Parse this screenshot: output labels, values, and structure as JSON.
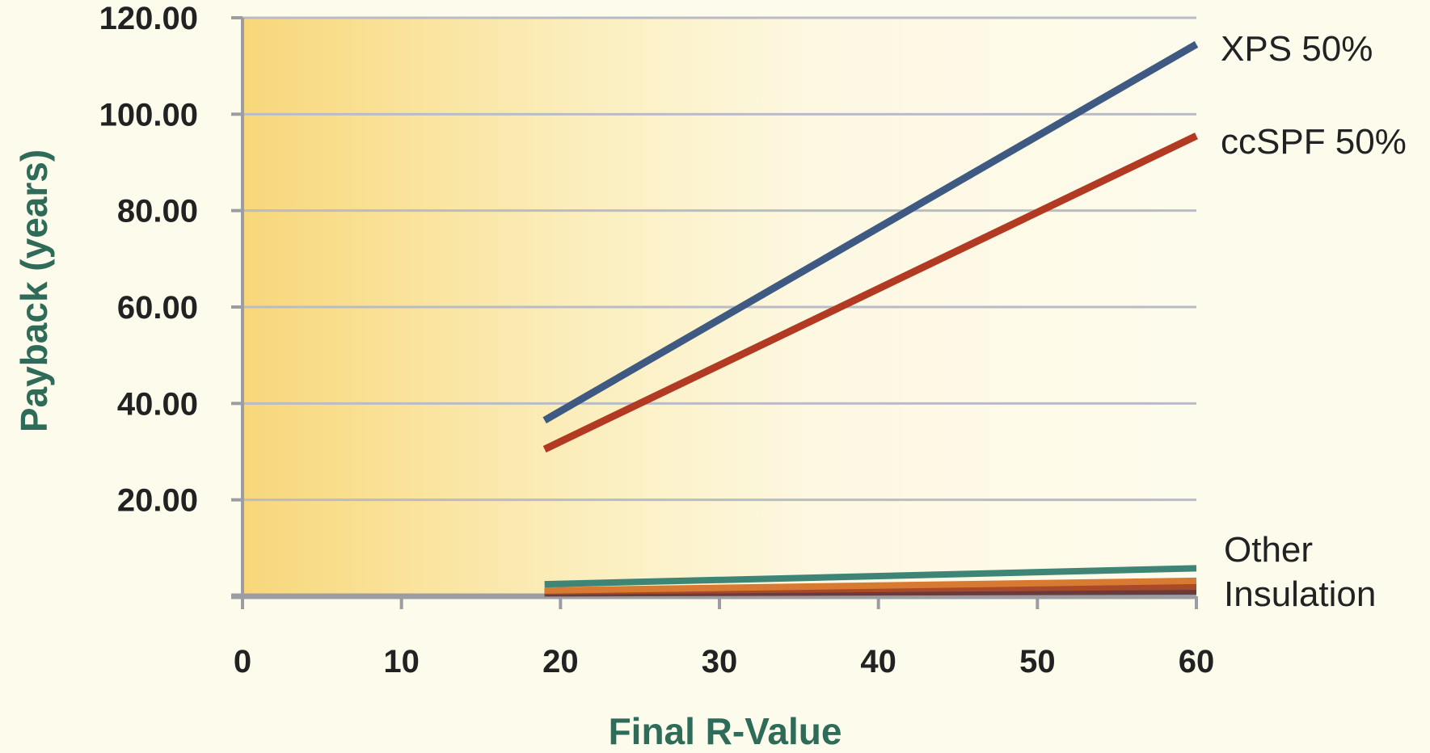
{
  "chart_data": {
    "type": "line",
    "title": "",
    "xlabel": "Final R-Value",
    "ylabel": "Payback (years)",
    "xlim": [
      0,
      60
    ],
    "ylim": [
      0,
      120
    ],
    "x_ticks": [
      "0",
      "10",
      "20",
      "30",
      "40",
      "50",
      "60"
    ],
    "y_ticks": [
      "20.00",
      "40.00",
      "60.00",
      "80.00",
      "100.00",
      "120.00"
    ],
    "grid": "horizontal",
    "background": "gradient-yellow-left",
    "series": [
      {
        "name": "XPS 50%",
        "color": "#3f5a82",
        "x": [
          19,
          60
        ],
        "y": [
          36.5,
          114.5
        ]
      },
      {
        "name": "ccSPF 50%",
        "color": "#b23a22",
        "x": [
          19,
          60
        ],
        "y": [
          30.5,
          95.5
        ]
      },
      {
        "name": "",
        "color": "#3e8575",
        "x": [
          19,
          60
        ],
        "y": [
          2.5,
          5.8
        ]
      },
      {
        "name": "",
        "color": "#d97a33",
        "x": [
          19,
          60
        ],
        "y": [
          1.2,
          3.2
        ]
      },
      {
        "name": "",
        "color": "#a84a2a",
        "x": [
          19,
          60
        ],
        "y": [
          1.0,
          2.0
        ]
      },
      {
        "name": "",
        "color": "#6b3a3a",
        "x": [
          19,
          60
        ],
        "y": [
          0.6,
          1.0
        ]
      }
    ],
    "annotations": [
      {
        "text": "Other",
        "group": "other"
      },
      {
        "text": "Insulation",
        "group": "other"
      }
    ],
    "label_colors": {
      "axis_title": "#2e6b58",
      "grid": "#b9bcc6",
      "axis": "#9b9da3"
    }
  }
}
